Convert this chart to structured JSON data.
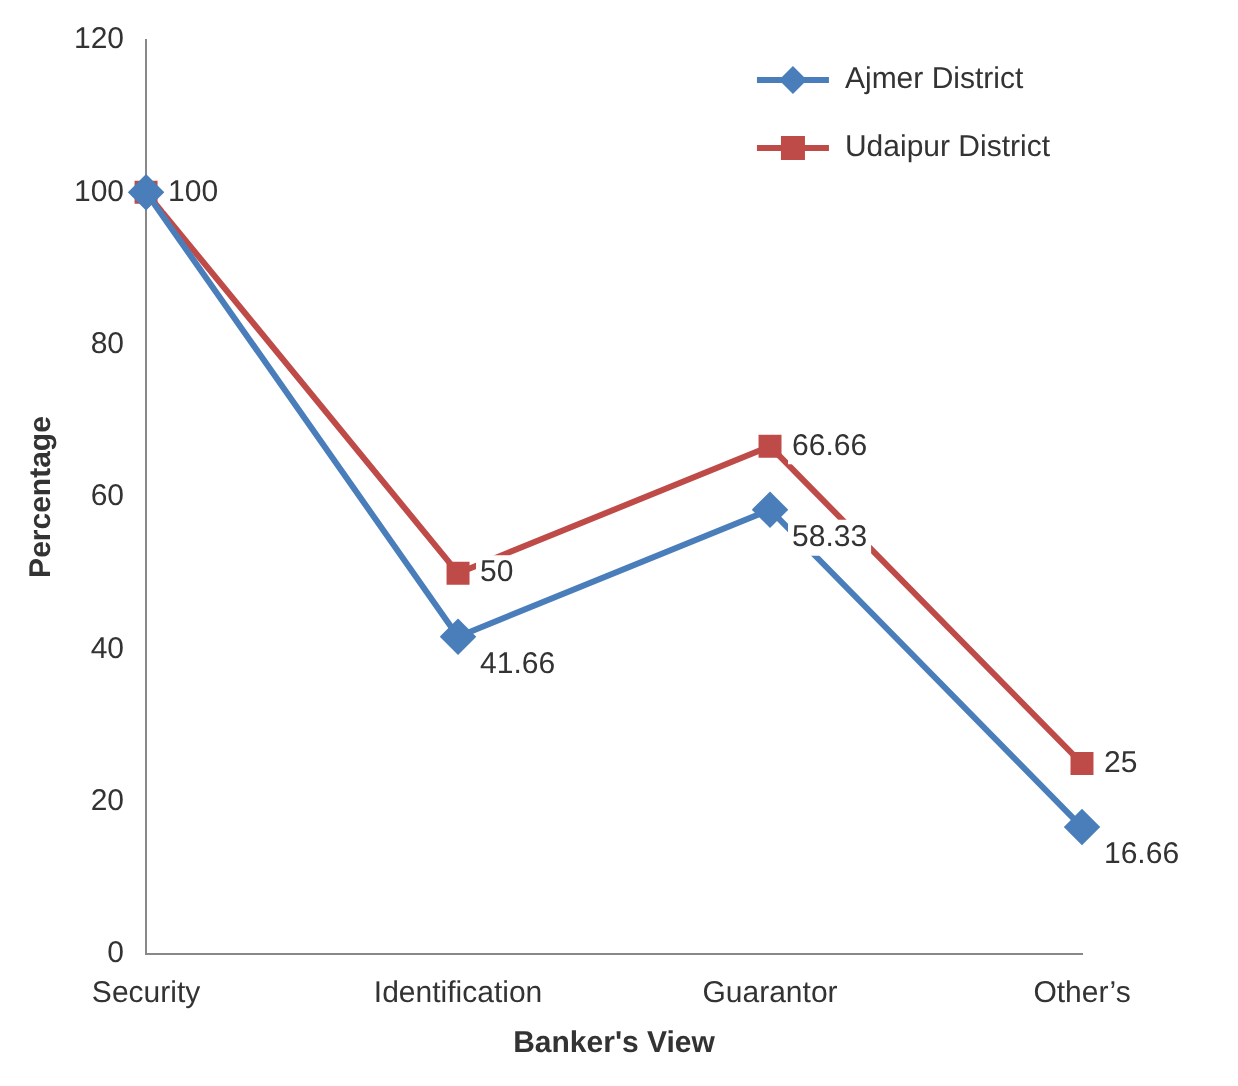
{
  "chart_data": {
    "type": "line",
    "xlabel": "Banker's View",
    "ylabel": "Percentage",
    "categories": [
      "Security",
      "Identification",
      "Guarantor",
      "Other’s"
    ],
    "series": [
      {
        "name": "Ajmer District",
        "color": "#4a7ebb",
        "marker": "diamond",
        "values": [
          100,
          41.66,
          58.33,
          16.66
        ],
        "value_labels": [
          null,
          "41.66",
          "58.33",
          "16.66"
        ]
      },
      {
        "name": "Udaipur District",
        "color": "#be4b48",
        "marker": "square",
        "values": [
          100,
          50,
          66.66,
          25
        ],
        "value_labels": [
          "100",
          "50",
          "66.66",
          "25"
        ]
      }
    ],
    "ylim": [
      0,
      120
    ],
    "yticks": [
      0,
      20,
      40,
      60,
      80,
      100,
      120
    ],
    "grid": false,
    "legend": "top right",
    "line_style": "solid"
  }
}
